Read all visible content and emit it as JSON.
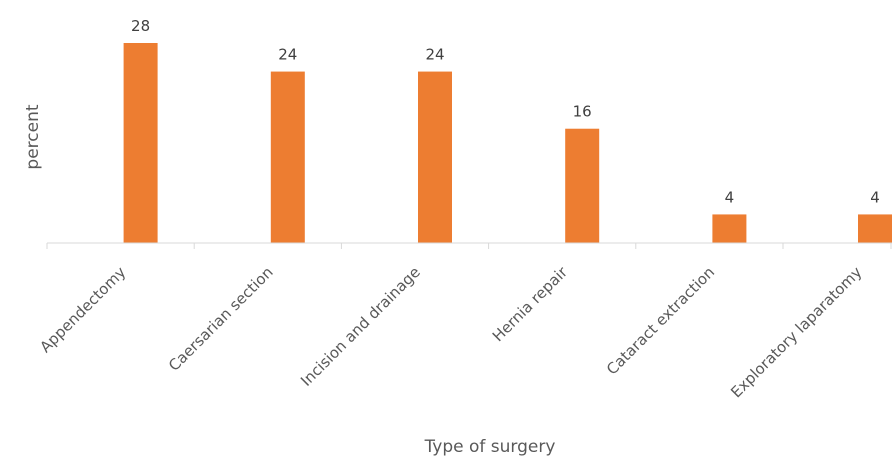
{
  "chart_data": {
    "type": "bar",
    "title": "",
    "xlabel": "Type of surgery",
    "ylabel": "percent",
    "categories": [
      "Appendectomy",
      "Caersarian section",
      "Incision and drainage",
      "Hernia repair",
      "Cataract extraction",
      "Exploratory laparatomy"
    ],
    "values": [
      28,
      24,
      24,
      16,
      4,
      4
    ],
    "data_labels": [
      "28",
      "24",
      "24",
      "16",
      "4",
      "4"
    ],
    "ylim": [
      0,
      28
    ],
    "grid": false,
    "legend": "none",
    "colors": {
      "bar": "#ED7D31",
      "axis": "#D9D9D9"
    }
  }
}
